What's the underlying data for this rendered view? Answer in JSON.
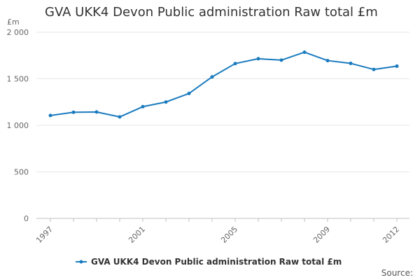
{
  "chart_data": {
    "type": "line",
    "title": "GVA UKK4 Devon Public administration Raw total £m",
    "ylabel": "£m",
    "xlabel": "",
    "ylim": [
      0,
      2000
    ],
    "y_ticks": [
      0,
      500,
      1000,
      1500,
      2000
    ],
    "y_tick_labels": [
      "0",
      "500",
      "1 000",
      "1 500",
      "2 000"
    ],
    "x_range": [
      1997,
      2012
    ],
    "x_tick_labels": [
      "1997",
      "2001",
      "2005",
      "2009",
      "2012"
    ],
    "x": [
      1997,
      1998,
      1999,
      2000,
      2001,
      2002,
      2003,
      2004,
      2005,
      2006,
      2007,
      2008,
      2009,
      2010,
      2011,
      2012
    ],
    "series": [
      {
        "name": "GVA UKK4 Devon Public administration Raw total £m",
        "color": "#1a7bbf",
        "values": [
          1105,
          1140,
          1143,
          1090,
          1200,
          1250,
          1342,
          1520,
          1663,
          1715,
          1700,
          1785,
          1695,
          1665,
          1600,
          1635
        ]
      }
    ],
    "grid": true,
    "legend_position": "bottom",
    "source_label": "Source:"
  }
}
